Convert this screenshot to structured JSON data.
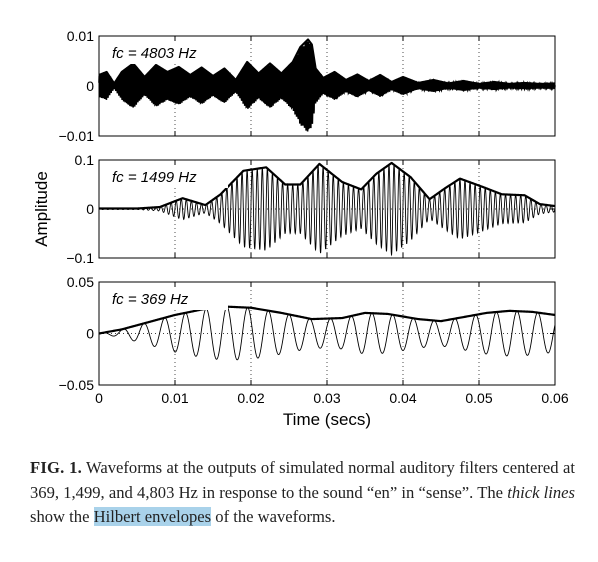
{
  "chart_data": {
    "type": "line",
    "xlabel": "Time (secs)",
    "ylabel": "Amplitude",
    "xlim": [
      0,
      0.06
    ],
    "x_ticks": [
      "0",
      "0.01",
      "0.02",
      "0.03",
      "0.04",
      "0.05",
      "0.06"
    ],
    "grid": "dotted",
    "panels": [
      {
        "label": "fc = 4803 Hz",
        "ylim": [
          -0.01,
          0.01
        ],
        "y_ticks": [
          "0.01",
          "0",
          "−0.01"
        ],
        "envelope": {
          "x": [
            0,
            0.001,
            0.002,
            0.003,
            0.0045,
            0.006,
            0.0075,
            0.009,
            0.0105,
            0.012,
            0.0135,
            0.015,
            0.0165,
            0.018,
            0.0195,
            0.021,
            0.0225,
            0.024,
            0.0255,
            0.0265,
            0.0275,
            0.028,
            0.0285,
            0.0295,
            0.031,
            0.0325,
            0.034,
            0.0355,
            0.037,
            0.0385,
            0.04,
            0.042,
            0.044,
            0.046,
            0.048,
            0.05,
            0.052,
            0.054,
            0.056,
            0.058,
            0.06
          ],
          "y": [
            0.0022,
            0.0028,
            0.0005,
            0.0028,
            0.0045,
            0.0018,
            0.0042,
            0.0028,
            0.0038,
            0.0022,
            0.0037,
            0.002,
            0.0035,
            0.0012,
            0.0048,
            0.0025,
            0.0045,
            0.0025,
            0.0048,
            0.0078,
            0.0093,
            0.0083,
            0.0035,
            0.0016,
            0.0028,
            0.0012,
            0.0023,
            0.001,
            0.0022,
            0.0008,
            0.0018,
            0.0006,
            0.0012,
            0.0005,
            0.001,
            0.0004,
            0.0008,
            0.0004,
            0.0006,
            0.0004,
            0.0005
          ]
        }
      },
      {
        "label": "fc = 1499 Hz",
        "ylim": [
          -0.1,
          0.1
        ],
        "y_ticks": [
          "0.1",
          "0",
          "−0.1"
        ],
        "envelope": {
          "x": [
            0,
            0.005,
            0.008,
            0.011,
            0.014,
            0.016,
            0.019,
            0.022,
            0.0245,
            0.0265,
            0.029,
            0.032,
            0.0345,
            0.0365,
            0.0385,
            0.041,
            0.0435,
            0.0455,
            0.0475,
            0.0505,
            0.053,
            0.056,
            0.058,
            0.06
          ],
          "y": [
            0.001,
            0.001,
            0.004,
            0.022,
            0.008,
            0.03,
            0.078,
            0.085,
            0.05,
            0.05,
            0.092,
            0.055,
            0.04,
            0.072,
            0.094,
            0.065,
            0.02,
            0.042,
            0.062,
            0.045,
            0.03,
            0.028,
            0.01,
            0.006
          ]
        }
      },
      {
        "label": "fc = 369 Hz",
        "ylim": [
          -0.05,
          0.05
        ],
        "y_ticks": [
          "0.05",
          "0",
          "−0.05"
        ],
        "envelope": {
          "x": [
            0,
            0.003,
            0.006,
            0.01,
            0.014,
            0.017,
            0.02,
            0.024,
            0.028,
            0.032,
            0.035,
            0.038,
            0.042,
            0.045,
            0.048,
            0.051,
            0.054,
            0.057,
            0.06
          ],
          "y": [
            0.0,
            0.004,
            0.01,
            0.018,
            0.024,
            0.026,
            0.025,
            0.02,
            0.014,
            0.015,
            0.02,
            0.019,
            0.014,
            0.012,
            0.016,
            0.02,
            0.022,
            0.021,
            0.018
          ]
        }
      }
    ]
  },
  "caption": {
    "label": "FIG. 1.",
    "text_1": "  Waveforms at the outputs of simulated normal auditory filters centered at 369, 1,499, and 4,803 Hz in response to the sound “en” in “sense”. The ",
    "emph": "thick lines",
    "text_2": " show the ",
    "highlight": "Hilbert envelopes",
    "text_3": " of the waveforms."
  },
  "colors": {
    "line": "#000000",
    "highlight": "#a9d2ea"
  }
}
